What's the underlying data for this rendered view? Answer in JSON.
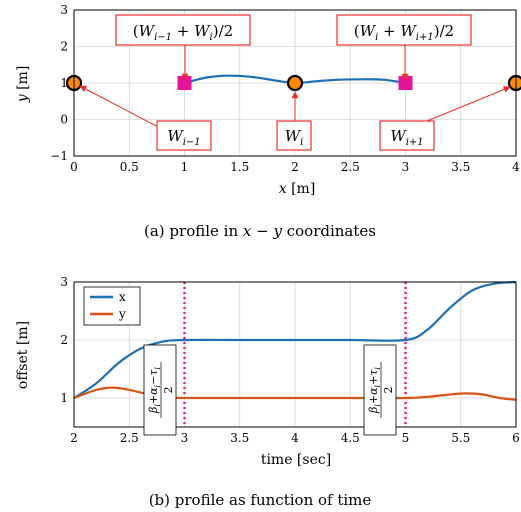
{
  "chart_data": [
    {
      "type": "line",
      "caption": "(a) profile in x − y coordinates",
      "xlabel": "x [m]",
      "ylabel": "y [m]",
      "xlim": [
        0,
        4
      ],
      "ylim": [
        -1,
        3
      ],
      "xticks": [
        "0",
        "0.5",
        "1",
        "1.5",
        "2",
        "2.5",
        "3",
        "3.5",
        "4"
      ],
      "yticks": [
        "−1",
        "0",
        "1",
        "2",
        "3"
      ],
      "grid": true,
      "series": [
        {
          "color": "#1f6fb2",
          "x": [
            1.0,
            1.2,
            1.4,
            1.6,
            1.8,
            2.0,
            2.2,
            2.4,
            2.6,
            2.8,
            3.0
          ],
          "y": [
            1.0,
            1.15,
            1.2,
            1.17,
            1.08,
            1.0,
            1.05,
            1.09,
            1.1,
            1.09,
            1.0
          ]
        }
      ],
      "waypoints": [
        {
          "x": 0,
          "y": 1
        },
        {
          "x": 2,
          "y": 1
        },
        {
          "x": 4,
          "y": 1
        }
      ],
      "midpoints": [
        {
          "x": 1,
          "y": 1
        },
        {
          "x": 3,
          "y": 1
        }
      ],
      "annotations": [
        {
          "text": "(W_{i−1} + W_i)/2",
          "target_x": 1,
          "target_y": 1
        },
        {
          "text": "(W_i + W_{i+1})/2",
          "target_x": 3,
          "target_y": 1
        },
        {
          "text": "W_{i−1}",
          "target_x": 0,
          "target_y": 1
        },
        {
          "text": "W_i",
          "target_x": 2,
          "target_y": 1
        },
        {
          "text": "W_{i+1}",
          "target_x": 4,
          "target_y": 1
        }
      ]
    },
    {
      "type": "line",
      "caption": "(b) profile as function of time",
      "xlabel": "time [sec]",
      "ylabel": "offset [m]",
      "xlim": [
        2,
        6
      ],
      "ylim": [
        0.5,
        3
      ],
      "xticks": [
        "2",
        "2.5",
        "3",
        "3.5",
        "4",
        "4.5",
        "5",
        "5.5",
        "6"
      ],
      "yticks": [
        "1",
        "2",
        "3"
      ],
      "grid": true,
      "legend_position": "top-left",
      "series": [
        {
          "name": "x",
          "color": "#1f6fb2",
          "x": [
            2.0,
            2.2,
            2.4,
            2.6,
            2.8,
            3.0,
            3.5,
            4.0,
            4.5,
            5.0,
            5.2,
            5.4,
            5.6,
            5.8,
            6.0
          ],
          "y": [
            1.0,
            1.25,
            1.6,
            1.85,
            1.97,
            2.0,
            2.0,
            2.0,
            2.0,
            2.0,
            2.18,
            2.55,
            2.85,
            2.97,
            3.0
          ]
        },
        {
          "name": "y",
          "color": "#d95319",
          "x": [
            2.0,
            2.2,
            2.35,
            2.5,
            2.7,
            2.85,
            3.0,
            3.5,
            4.0,
            4.5,
            5.0,
            5.2,
            5.4,
            5.55,
            5.7,
            5.85,
            6.0
          ],
          "y": [
            1.0,
            1.14,
            1.18,
            1.14,
            1.05,
            1.01,
            1.0,
            1.0,
            1.0,
            1.0,
            1.0,
            1.02,
            1.06,
            1.08,
            1.06,
            1.0,
            0.97
          ]
        }
      ],
      "vlines": [
        3,
        5
      ],
      "vline_color": "#e6149a",
      "annotations": [
        {
          "text": "(β_i + α_i − τ_i)/2",
          "x": 3
        },
        {
          "text": "(β_i + α_i + τ_i)/2",
          "x": 5
        }
      ]
    }
  ]
}
